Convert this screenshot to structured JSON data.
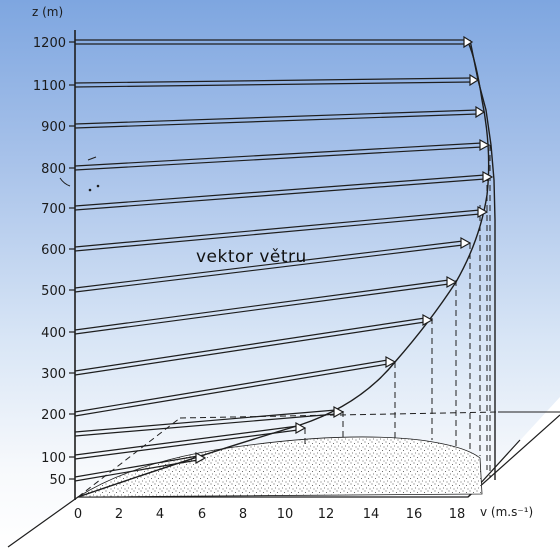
{
  "diagram": {
    "center_label": "vektor větru",
    "y_axis_label": "z (m)",
    "x_axis_label": "v (m.s⁻¹)",
    "y_ticks": [
      "50",
      "100",
      "200",
      "300",
      "400",
      "500",
      "600",
      "700",
      "800",
      "900",
      "1100",
      "1200"
    ],
    "x_ticks": [
      "0",
      "2",
      "4",
      "6",
      "8",
      "10",
      "12",
      "14",
      "16",
      "18"
    ],
    "colors": {
      "line": "#1e1e1e",
      "arrow_fill": "#ffffff",
      "speckle": "#3a3a3a"
    }
  }
}
